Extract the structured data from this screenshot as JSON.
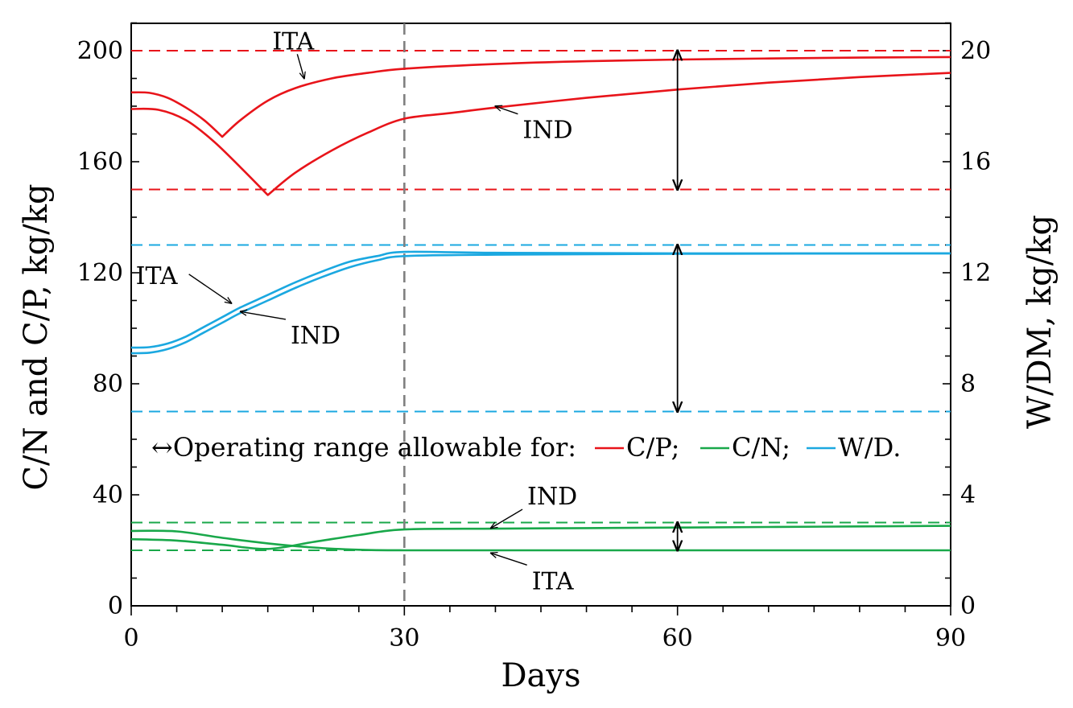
{
  "chart_data": {
    "type": "line",
    "xlabel": "Days",
    "ylabel_left": "C/N and C/P,  kg/kg",
    "ylabel_right": "W/DM, kg/kg",
    "xlim": [
      0,
      90
    ],
    "ylim_left": [
      0,
      210
    ],
    "ylim_right": [
      0,
      21
    ],
    "x_ticks": [
      0,
      30,
      60,
      90
    ],
    "y_ticks_left": [
      0,
      40,
      80,
      120,
      160,
      200
    ],
    "y_ticks_right": [
      0,
      4,
      8,
      12,
      16,
      20
    ],
    "vertical_marker_x": 30,
    "colors": {
      "cp": "#e8141a",
      "cn": "#19a84a",
      "wd": "#1ba8e0",
      "marker": "#808080"
    },
    "limit_lines": [
      {
        "name": "cp-upper",
        "y": 200,
        "color": "#e8141a"
      },
      {
        "name": "cp-lower",
        "y": 150,
        "color": "#e8141a"
      },
      {
        "name": "wd-upper",
        "y": 130,
        "color": "#1ba8e0"
      },
      {
        "name": "wd-lower",
        "y": 70,
        "color": "#1ba8e0"
      },
      {
        "name": "cn-upper",
        "y": 30,
        "color": "#19a84a"
      },
      {
        "name": "cn-lower",
        "y": 20,
        "color": "#19a84a"
      }
    ],
    "range_arrows": [
      {
        "name": "cp-range-arrow",
        "x": 60,
        "y1": 200,
        "y2": 150
      },
      {
        "name": "wd-range-arrow",
        "x": 60,
        "y1": 130,
        "y2": 70
      },
      {
        "name": "cn-range-arrow",
        "x": 60,
        "y1": 30,
        "y2": 20
      }
    ],
    "series": [
      {
        "name": "C/P ITA",
        "group": "cp",
        "x": [
          0,
          2,
          4,
          6,
          8,
          10,
          12,
          15,
          18,
          22,
          26,
          30,
          40,
          50,
          60,
          70,
          80,
          90
        ],
        "y": [
          185,
          184.8,
          183,
          179.5,
          175,
          169,
          175,
          182,
          186.5,
          190,
          192,
          193.5,
          195.2,
          196.2,
          196.8,
          197.2,
          197.5,
          197.7
        ]
      },
      {
        "name": "C/P IND",
        "group": "cp",
        "x": [
          0,
          3,
          6,
          9,
          12,
          15,
          18,
          22,
          26,
          30,
          35,
          40,
          50,
          60,
          70,
          80,
          90
        ],
        "y": [
          179,
          178.7,
          175,
          167.5,
          158,
          148,
          156,
          164,
          170.5,
          175.5,
          177.5,
          179.5,
          183,
          186,
          188.5,
          190.5,
          192
        ]
      },
      {
        "name": "W/D ITA",
        "group": "wd",
        "x": [
          0,
          2,
          4,
          6,
          8,
          10,
          12,
          15,
          18,
          21,
          24,
          27,
          30,
          40,
          60,
          90
        ],
        "y": [
          93,
          93.2,
          94.5,
          97,
          100.5,
          104,
          107.5,
          112,
          116.5,
          120.5,
          124,
          126,
          127.5,
          127.2,
          127,
          127
        ]
      },
      {
        "name": "W/D IND",
        "group": "wd",
        "x": [
          0,
          2,
          4,
          6,
          8,
          10,
          12,
          15,
          18,
          21,
          24,
          27,
          30,
          40,
          60,
          90
        ],
        "y": [
          91,
          91.2,
          92.5,
          95,
          98.5,
          102,
          105.5,
          110,
          114.5,
          118.5,
          122,
          124.5,
          126,
          126.5,
          126.8,
          127
        ]
      },
      {
        "name": "C/N IND",
        "group": "cn",
        "x": [
          0,
          5,
          10,
          15,
          20,
          25,
          30,
          40,
          50,
          60,
          70,
          80,
          90
        ],
        "y": [
          24,
          23.5,
          22,
          20.5,
          23,
          25.5,
          27.5,
          27.8,
          28,
          28.2,
          28.4,
          28.6,
          28.8
        ]
      },
      {
        "name": "C/N ITA",
        "group": "cn",
        "x": [
          0,
          5,
          10,
          15,
          20,
          25,
          30,
          40,
          60,
          90
        ],
        "y": [
          27,
          26.8,
          24.5,
          22.5,
          21,
          20.2,
          20,
          20,
          20,
          20
        ]
      }
    ],
    "annotations": [
      {
        "name": "anno-cp-ita",
        "label": "ITA",
        "text_x": 15.5,
        "text_y": 200.5,
        "arrow_to": [
          19,
          190
        ]
      },
      {
        "name": "anno-cp-ind",
        "label": "IND",
        "text_x": 43,
        "text_y": 168.5,
        "arrow_to": [
          40,
          180
        ]
      },
      {
        "name": "anno-wd-ita",
        "label": "ITA",
        "text_x": 0.5,
        "text_y": 116,
        "arrow_to": [
          11,
          109
        ]
      },
      {
        "name": "anno-wd-ind",
        "label": "IND",
        "text_x": 17.5,
        "text_y": 94.5,
        "arrow_to": [
          12,
          106
        ]
      },
      {
        "name": "anno-cn-ind",
        "label": "IND",
        "text_x": 43.5,
        "text_y": 36.5,
        "arrow_to": [
          39.5,
          28
        ]
      },
      {
        "name": "anno-cn-ita",
        "label": "ITA",
        "text_x": 44,
        "text_y": 6,
        "arrow_to": [
          39.5,
          19
        ]
      }
    ],
    "legend": {
      "prefix": "↔Operating range allowable for:",
      "items": [
        {
          "name": "cp",
          "label": "C/P;"
        },
        {
          "name": "cn",
          "label": "C/N;"
        },
        {
          "name": "wd",
          "label": "W/D."
        }
      ]
    }
  }
}
